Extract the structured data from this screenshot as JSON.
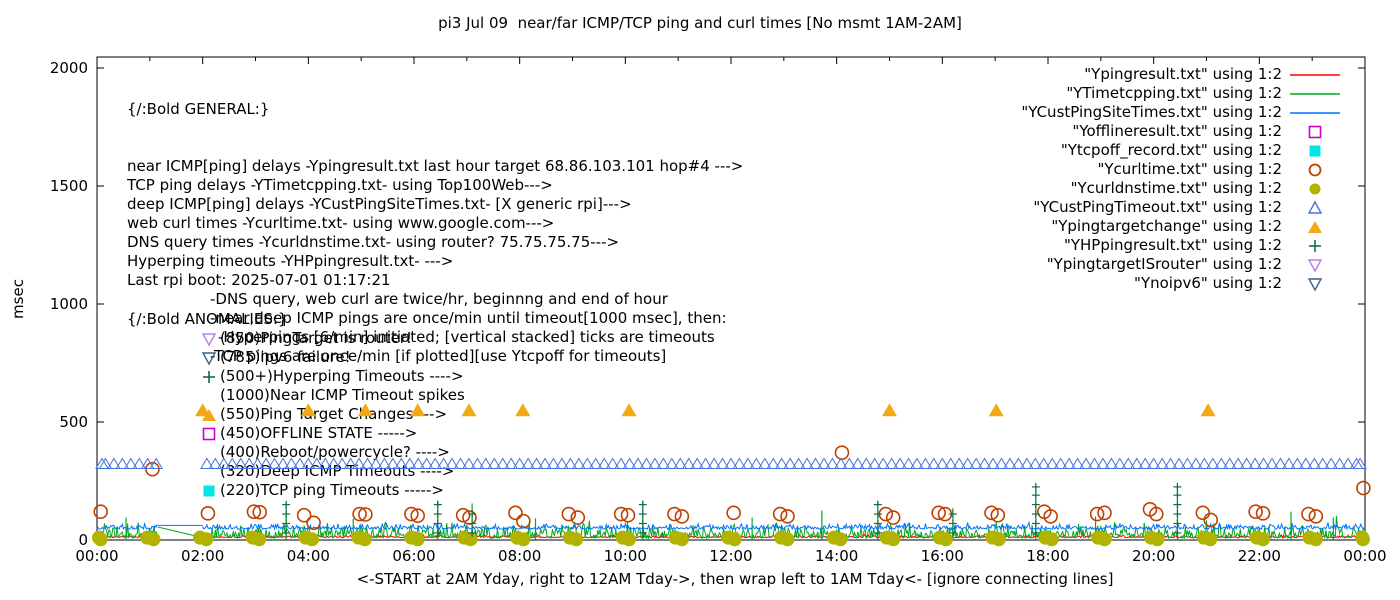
{
  "title": "pi3 Jul 09  near/far ICMP/TCP ping and curl times [No msmt 1AM-2AM]",
  "general": {
    "header": "{/:Bold GENERAL:}",
    "lines": [
      {
        "indent": 0,
        "text": "near ICMP[ping] delays -Ypingresult.txt last hour target 68.86.103.101 hop#4 --->"
      },
      {
        "indent": 0,
        "text": "TCP ping delays -YTimetcpping.txt- using Top100Web--->"
      },
      {
        "indent": 0,
        "text": "deep ICMP[ping] delays -YCustPingSiteTimes.txt- [X generic rpi]--->"
      },
      {
        "indent": 0,
        "text": "web curl times -Ycurltime.txt- using www.google.com--->"
      },
      {
        "indent": 0,
        "text": "DNS query times -Ycurldnstime.txt- using router? 75.75.75.75--->"
      },
      {
        "indent": 0,
        "text": "Hyperping timeouts -YHPpingresult.txt- --->"
      },
      {
        "indent": 0,
        "text": "Last rpi boot: 2025-07-01 01:17:21"
      },
      {
        "indent": 83,
        "text": "-DNS query, web curl are twice/hr, beginnng and end of hour"
      },
      {
        "indent": 83,
        "text": "-near,deep ICMP pings are once/min until timeout[1000 msec], then:"
      },
      {
        "indent": 91,
        "text": "-Hyperpings [6/min] initiated; [vertical stacked] ticks are timeouts"
      },
      {
        "indent": 83,
        "text": "-TCP pings are once/min [if plotted][use Ytcpoff for timeouts]"
      }
    ]
  },
  "anomalies": {
    "header": "{/:Bold ANOMALIES:}",
    "rows": [
      {
        "marker": "open-tri-down",
        "color": "#bd7de3",
        "text": "(850)PingTarget is router!"
      },
      {
        "marker": "open-tri-down",
        "color": "#36648b",
        "text": "(785)ipv6 failure!"
      },
      {
        "marker": "plus",
        "color": "#156d45",
        "text": "(500+)Hyperping Timeouts ---->"
      },
      {
        "marker": null,
        "color": null,
        "text": "(1000)Near ICMP Timeout spikes"
      },
      {
        "marker": "filled-tri-up",
        "color": "#f2a913",
        "text": "(550)Ping Target Changes --->"
      },
      {
        "marker": "open-square",
        "color": "#cc00cc",
        "text": "(450)OFFLINE STATE ----->"
      },
      {
        "marker": null,
        "color": null,
        "text": "(400)Reboot/powercycle? ---->"
      },
      {
        "marker": null,
        "color": null,
        "text": "(320)Deep ICMP Timeouts ---->"
      },
      {
        "marker": "filled-square",
        "color": "#00e5e5",
        "text": "(220)TCP ping Timeouts ----->"
      }
    ]
  },
  "legend": [
    {
      "label": "\"Ypingresult.txt\" using 1:2",
      "sample": "line",
      "color": "#ff0000"
    },
    {
      "label": "\"YTimetcpping.txt\" using 1:2",
      "sample": "line",
      "color": "#00a81d"
    },
    {
      "label": "\"YCustPingSiteTimes.txt\" using 1:2",
      "sample": "line",
      "color": "#0073fe"
    },
    {
      "label": "\"Yofflineresult.txt\" using 1:2",
      "sample": "open-square",
      "color": "#cc00cc"
    },
    {
      "label": "\"Ytcpoff_record.txt\" using 1:2",
      "sample": "filled-square",
      "color": "#00e5e5"
    },
    {
      "label": "\"Ycurltime.txt\" using 1:2",
      "sample": "open-circle",
      "color": "#bf4000"
    },
    {
      "label": "\"Ycurldnstime.txt\" using 1:2",
      "sample": "filled-circle",
      "color": "#b2b300"
    },
    {
      "label": "\"YCustPingTimeout.txt\" using 1:2",
      "sample": "open-tri-up",
      "color": "#4673d8"
    },
    {
      "label": "\"Ypingtargetchange\" using 1:2",
      "sample": "filled-tri-up",
      "color": "#f2a913"
    },
    {
      "label": "\"YHPpingresult.txt\" using 1:2",
      "sample": "plus",
      "color": "#156d45"
    },
    {
      "label": "\"YpingtargetISrouter\" using 1:2",
      "sample": "open-tri-down",
      "color": "#bd7de3"
    },
    {
      "label": "\"Ynoipv6\" using 1:2",
      "sample": "open-tri-down",
      "color": "#36648b"
    }
  ],
  "chart_data": {
    "type": "line",
    "title": "pi3 Jul 09  near/far ICMP/TCP ping and curl times [No msmt 1AM-2AM]",
    "ylabel": "msec",
    "xlabel": "<-START at 2AM Yday, right to 12AM Tday->, then wrap left to 1AM Tday<- [ignore connecting lines]",
    "ylim": [
      0,
      2000
    ],
    "xlim_hours": [
      0,
      24
    ],
    "y_ticks": [
      0,
      500,
      1000,
      1500,
      2000
    ],
    "x_ticks": [
      "00:00",
      "02:00",
      "04:00",
      "06:00",
      "08:00",
      "10:00",
      "12:00",
      "14:00",
      "16:00",
      "18:00",
      "20:00",
      "22:00",
      "00:00"
    ],
    "x_tick_hours": [
      0,
      2,
      4,
      6,
      8,
      10,
      12,
      14,
      16,
      18,
      20,
      22,
      24
    ],
    "no_measurement_gap_hours": [
      1.15,
      2.0
    ],
    "series": [
      {
        "name": "Ypingresult.txt",
        "style": "noisy-line",
        "color": "#ff0000",
        "baseline_ms": 10,
        "noise_ms": 12,
        "gap": [
          1.15,
          2.0
        ]
      },
      {
        "name": "YTimetcpping.txt",
        "style": "noisy-line",
        "color": "#00a81d",
        "baseline_ms": 8,
        "noise_ms": 72,
        "gap": [
          1.15,
          2.0
        ],
        "connector": {
          "from": [
            1.15,
            55
          ],
          "to": [
            2.0,
            10
          ]
        },
        "spikes": [
          [
            0.55,
            95
          ],
          [
            3.58,
            160
          ],
          [
            4.85,
            90
          ],
          [
            6.45,
            165
          ],
          [
            7.1,
            155
          ],
          [
            8.3,
            92
          ],
          [
            10.33,
            165
          ],
          [
            12.4,
            95
          ],
          [
            13.72,
            125
          ],
          [
            14.78,
            165
          ],
          [
            16.2,
            135
          ],
          [
            17.77,
            232
          ],
          [
            18.9,
            100
          ],
          [
            20.45,
            232
          ],
          [
            22.6,
            120
          ],
          [
            23.4,
            95
          ]
        ]
      },
      {
        "name": "YCustPingSiteTimes.txt",
        "style": "noisy-line",
        "color": "#0073fe",
        "baseline_ms": 46,
        "noise_ms": 26,
        "gap": [
          1.15,
          2.0
        ],
        "connector": {
          "from": [
            1.15,
            62
          ],
          "to": [
            2.0,
            62
          ]
        }
      },
      {
        "name": "Yofflineresult.txt",
        "style": "open-square",
        "color": "#cc00cc",
        "points": []
      },
      {
        "name": "Ytcpoff_record.txt",
        "style": "filled-square",
        "color": "#00e5e5",
        "points": []
      },
      {
        "name": "Ycurltime.txt",
        "style": "open-circle",
        "color": "#bf4000",
        "points": [
          [
            0.07,
            120
          ],
          [
            1.05,
            300
          ],
          [
            2.1,
            113
          ],
          [
            2.97,
            120
          ],
          [
            3.08,
            118
          ],
          [
            3.92,
            105
          ],
          [
            4.1,
            73
          ],
          [
            4.97,
            110
          ],
          [
            5.08,
            108
          ],
          [
            5.95,
            110
          ],
          [
            6.07,
            103
          ],
          [
            6.93,
            105
          ],
          [
            7.05,
            95
          ],
          [
            7.92,
            115
          ],
          [
            8.07,
            80
          ],
          [
            8.93,
            110
          ],
          [
            9.1,
            95
          ],
          [
            9.92,
            110
          ],
          [
            10.05,
            105
          ],
          [
            10.93,
            110
          ],
          [
            11.07,
            100
          ],
          [
            12.05,
            115
          ],
          [
            12.93,
            110
          ],
          [
            13.07,
            100
          ],
          [
            14.1,
            370
          ],
          [
            14.93,
            110
          ],
          [
            15.07,
            95
          ],
          [
            15.93,
            115
          ],
          [
            16.05,
            110
          ],
          [
            16.93,
            115
          ],
          [
            17.05,
            105
          ],
          [
            17.93,
            120
          ],
          [
            18.05,
            100
          ],
          [
            18.93,
            110
          ],
          [
            19.07,
            115
          ],
          [
            19.93,
            130
          ],
          [
            20.05,
            110
          ],
          [
            20.93,
            115
          ],
          [
            21.08,
            85
          ],
          [
            21.93,
            120
          ],
          [
            22.07,
            113
          ],
          [
            22.93,
            110
          ],
          [
            23.07,
            100
          ],
          [
            23.97,
            220
          ]
        ]
      },
      {
        "name": "Ycurldnstime.txt",
        "style": "hourly-dot-pairs",
        "color": "#b2b300",
        "hours": [
          0,
          1,
          2,
          3,
          4,
          5,
          6,
          7,
          8,
          9,
          10,
          11,
          12,
          13,
          14,
          15,
          16,
          17,
          18,
          19,
          20,
          21,
          22,
          23,
          24
        ],
        "ms": 6
      },
      {
        "name": "YCustPingTimeout.txt",
        "style": "triangle-band",
        "color": "#4673d8",
        "ms": 320,
        "gap": [
          1.15,
          2.0
        ],
        "spacing_hours": 0.16
      },
      {
        "name": "Ypingtargetchange",
        "style": "filled-tri-up",
        "color": "#f2a913",
        "ms": 550,
        "times": [
          2.0,
          4.0,
          5.08,
          6.07,
          7.04,
          8.06,
          10.07,
          15.0,
          17.02,
          21.03
        ]
      },
      {
        "name": "YHPpingresult.txt",
        "style": "plus-stacks",
        "color": "#156d45",
        "clusters": [
          {
            "t": 3.58,
            "ms": [
              30,
              70,
              110,
              150
            ]
          },
          {
            "t": 6.45,
            "ms": [
              30,
              70,
              110,
              150
            ]
          },
          {
            "t": 7.1,
            "ms": [
              30,
              70,
              110
            ]
          },
          {
            "t": 10.33,
            "ms": [
              30,
              70,
              110,
              150
            ]
          },
          {
            "t": 14.78,
            "ms": [
              30,
              70,
              110,
              150
            ]
          },
          {
            "t": 16.2,
            "ms": [
              30,
              70,
              110
            ]
          },
          {
            "t": 17.77,
            "ms": [
              30,
              70,
              110,
              150,
              190,
              225
            ]
          },
          {
            "t": 20.45,
            "ms": [
              30,
              70,
              110,
              150,
              190,
              225
            ]
          }
        ]
      },
      {
        "name": "YpingtargetISrouter",
        "style": "open-tri-down",
        "color": "#bd7de3",
        "points": []
      },
      {
        "name": "Ynoipv6",
        "style": "open-tri-down",
        "color": "#36648b",
        "points": []
      }
    ]
  }
}
